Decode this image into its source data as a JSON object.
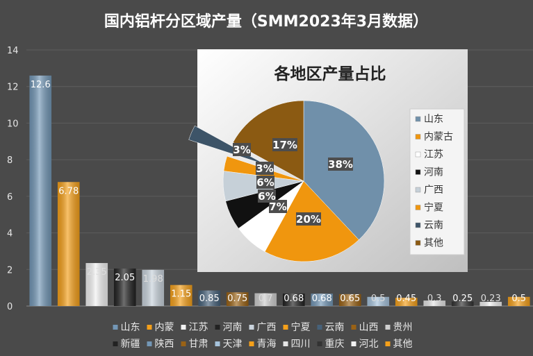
{
  "chart_data": [
    {
      "type": "bar",
      "title": "国内铝杆分区域产量（SMM2023年3月数据）",
      "ylim": [
        0,
        14
      ],
      "yticks": [
        0,
        2,
        4,
        6,
        8,
        10,
        12,
        14
      ],
      "grid": true,
      "legend_position": "bottom",
      "categories": [
        "山东",
        "内蒙",
        "江苏",
        "河南",
        "广西",
        "宁夏",
        "云南",
        "山西",
        "贵州",
        "新疆",
        "陕西",
        "甘肃",
        "天津",
        "青海",
        "四川",
        "重庆",
        "河北",
        "其他"
      ],
      "values": [
        12.6,
        6.78,
        2.35,
        2.05,
        1.98,
        1.15,
        0.85,
        0.75,
        0.7,
        0.68,
        0.68,
        0.65,
        0.5,
        0.45,
        0.3,
        0.25,
        0.23,
        0.5
      ],
      "value_labels": [
        "12.6",
        "6.78",
        "2.35",
        "2.05",
        "1.98",
        "1.15",
        "0.85",
        "0.75",
        "0.7",
        "0.68",
        "0.68",
        "0.65",
        "0.5",
        "0.45",
        "0.3",
        "0.25",
        "0.23",
        "0.5"
      ],
      "colors": [
        "#7397b6",
        "#f5a01a",
        "#f2f2f2",
        "#222222",
        "#c9d3dc",
        "#f5a01a",
        "#46617a",
        "#9a6215",
        "#cfcfcf",
        "#222222",
        "#7397b6",
        "#9a6215",
        "#a6c3dc",
        "#f5a01a",
        "#e6e6e6",
        "#333333",
        "#f2f2f2",
        "#f5a01a"
      ],
      "legend_rows": [
        [
          "山东",
          "内蒙",
          "江苏",
          "河南",
          "广西",
          "宁夏",
          "云南",
          "山西",
          "贵州"
        ],
        [
          "新疆",
          "陕西",
          "甘肃",
          "天津",
          "青海",
          "四川",
          "重庆",
          "河北",
          "其他"
        ]
      ]
    },
    {
      "type": "pie",
      "title": "各地区产量占比",
      "categories": [
        "山东",
        "内蒙古",
        "江苏",
        "河南",
        "广西",
        "宁夏",
        "云南",
        "其他"
      ],
      "values": [
        38,
        20,
        7,
        6,
        6,
        3,
        3,
        17
      ],
      "labels": [
        "38%",
        "20%",
        "7%",
        "6%",
        "6%",
        "3%",
        "3%",
        "17%"
      ],
      "colors": [
        "#7090aa",
        "#f0960e",
        "#ffffff",
        "#111111",
        "#c6d0d8",
        "#f0960e",
        "#3d5468",
        "#8b5a12"
      ],
      "exploded": "云南",
      "legend_position": "right"
    }
  ]
}
